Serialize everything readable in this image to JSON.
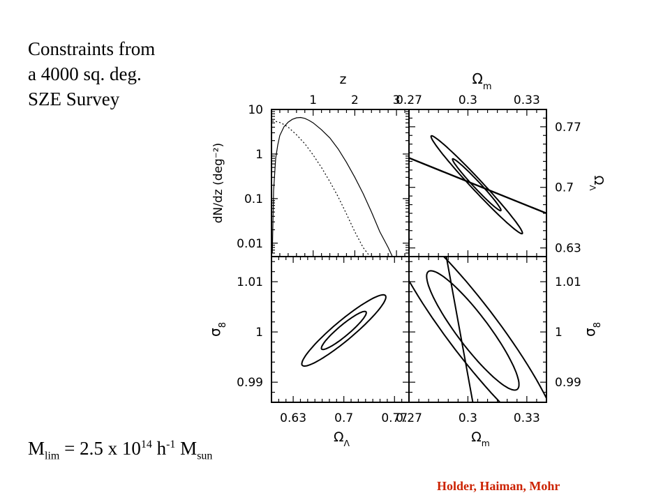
{
  "slide": {
    "title_lines": [
      "Constraints  from",
      "a 4000 sq.  deg.",
      "SZE Survey"
    ],
    "mlim": {
      "M": "M",
      "lim_sub": "lim",
      "eq": " = 2.5 x 10",
      "exp": "14",
      "h": " h",
      "hexp": "-1",
      "M2": " M",
      "sun_sub": "sun"
    },
    "credit": "Holder, Haiman, Mohr",
    "colors": {
      "credit": "#cc2200",
      "ink": "#000000"
    }
  },
  "chart_data": [
    {
      "type": "line",
      "panel": "top-left",
      "xlabel_top": "z",
      "ylabel": "dN/dz (deg⁻²)",
      "xtick_labels_top": [
        "1",
        "2",
        "3"
      ],
      "ytick_labels": [
        "10",
        "1",
        "0.1",
        "0.01"
      ],
      "ylog": true,
      "xlim": [
        0,
        3.3
      ],
      "ylim": [
        0.005,
        10
      ],
      "series": [
        {
          "style": "solid",
          "x": [
            0.02,
            0.05,
            0.1,
            0.15,
            0.2,
            0.3,
            0.4,
            0.5,
            0.6,
            0.7,
            0.8,
            0.9,
            1.0,
            1.2,
            1.4,
            1.6,
            1.8,
            2.0,
            2.2,
            2.4,
            2.6,
            2.8,
            2.95
          ],
          "y": [
            0.006,
            0.15,
            0.8,
            1.6,
            2.6,
            4.1,
            5.2,
            6.0,
            6.5,
            6.6,
            6.3,
            5.7,
            5.0,
            3.5,
            2.3,
            1.3,
            0.65,
            0.3,
            0.13,
            0.05,
            0.018,
            0.008,
            0.004
          ]
        },
        {
          "style": "dotted",
          "x": [
            0.02,
            0.05,
            0.1,
            0.2,
            0.3,
            0.4,
            0.5,
            0.6,
            0.8,
            1.0,
            1.2,
            1.4,
            1.6,
            1.8,
            2.0,
            2.2,
            2.4,
            2.55
          ],
          "y": [
            5.5,
            5.5,
            5.4,
            5.1,
            4.6,
            4.0,
            3.3,
            2.7,
            1.7,
            0.95,
            0.5,
            0.24,
            0.11,
            0.045,
            0.018,
            0.008,
            0.0045,
            0.003
          ]
        }
      ]
    },
    {
      "type": "contour",
      "panel": "top-right",
      "xlabel_top": "Ωm",
      "ylabel_right": "ΩΛ",
      "xtick_labels_top": [
        "0.27",
        "0.3",
        "0.33"
      ],
      "ytick_labels_right": [
        "0.77",
        "0.7",
        "0.63"
      ],
      "xlim": [
        0.27,
        0.34
      ],
      "ylim": [
        0.62,
        0.79
      ],
      "ellipses": [
        {
          "center": [
            0.3045,
            0.703
          ],
          "semi_major": 0.034,
          "semi_minor": 0.0028,
          "angle_deg": -47
        },
        {
          "center": [
            0.3045,
            0.703
          ],
          "semi_major": 0.018,
          "semi_minor": 0.0017,
          "angle_deg": -47
        }
      ],
      "line": {
        "x": [
          0.27,
          0.34
        ],
        "y": [
          0.734,
          0.67
        ]
      }
    },
    {
      "type": "contour",
      "panel": "bottom-left",
      "xlabel": "ΩΛ",
      "ylabel": "σ8",
      "xtick_labels": [
        "0.63",
        "0.7",
        "0.77"
      ],
      "ytick_labels": [
        "1.01",
        "1",
        "0.99"
      ],
      "xlim": [
        0.6,
        0.79
      ],
      "ylim": [
        0.986,
        1.015
      ],
      "ellipses": [
        {
          "center": [
            0.7,
            1.0003
          ],
          "semi_major": 0.075,
          "semi_minor": 0.0032,
          "angle_deg": 40
        },
        {
          "center": [
            0.7,
            1.0003
          ],
          "semi_major": 0.04,
          "semi_minor": 0.0018,
          "angle_deg": 40
        }
      ]
    },
    {
      "type": "contour",
      "panel": "bottom-right",
      "xlabel": "Ωm",
      "ylabel_right": "σ8",
      "xtick_labels": [
        "0.27",
        "0.3",
        "0.33"
      ],
      "ytick_labels_right": [
        "1.01",
        "1",
        "0.99"
      ],
      "xlim": [
        0.27,
        0.34
      ],
      "ylim": [
        0.986,
        1.015
      ],
      "ellipses": [
        {
          "center": [
            0.3025,
            1.0003
          ],
          "semi_major": 0.03,
          "semi_minor": 0.0013,
          "angle_deg": -53
        },
        {
          "center": [
            0.3025,
            1.0003
          ],
          "semi_major": 0.016,
          "semi_minor": 0.0008,
          "angle_deg": -53
        }
      ],
      "line": {
        "x": [
          0.289,
          0.3025
        ],
        "y": [
          1.015,
          0.986
        ]
      }
    }
  ]
}
